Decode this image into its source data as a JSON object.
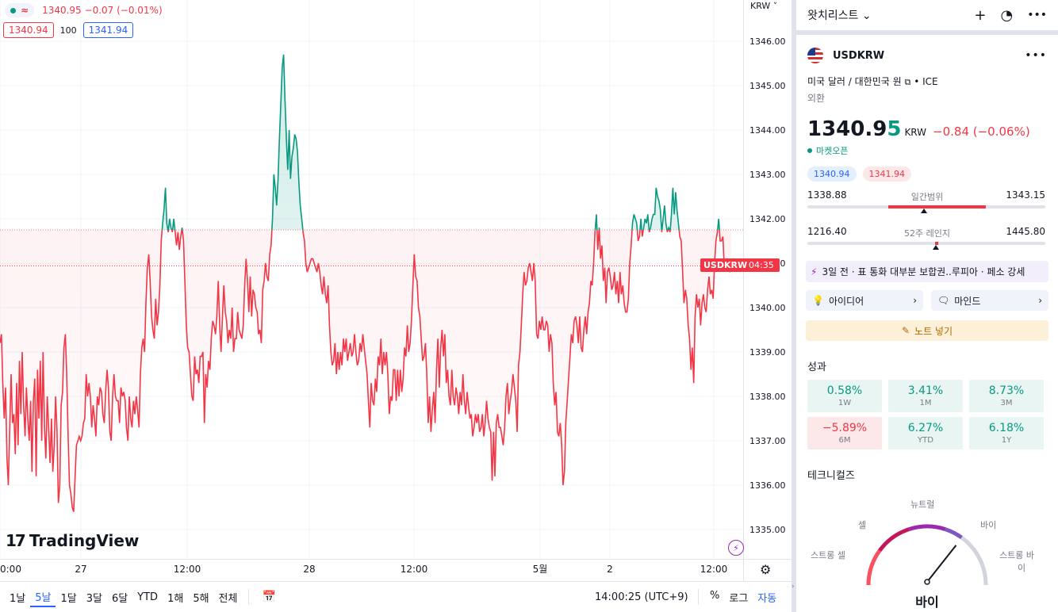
{
  "chart_data": {
    "type": "area",
    "symbol": "USDKRW",
    "y_ticks": [
      "1346.00",
      "1345.00",
      "1344.00",
      "1343.00",
      "1342.00",
      "1341.00",
      "1340.00",
      "1339.00",
      "1338.00",
      "1337.00",
      "1336.00",
      "1335.00"
    ],
    "x_ticks": [
      "0:00",
      "27",
      "12:00",
      "28",
      "12:00",
      "5월",
      "2",
      "12:00"
    ],
    "baseline": 1341.75,
    "last_price": 1340.94,
    "ylim": [
      1334.6,
      1346.3
    ],
    "series": [
      {
        "values": [
          1339.2,
          1339.4,
          1338.3,
          1337.5,
          1338.2,
          1336.6,
          1336.0,
          1337.3,
          1338.5,
          1337.4,
          1337.6,
          1336.7,
          1338.3,
          1336.9,
          1338.8,
          1337.6,
          1339.0,
          1337.8,
          1337.1,
          1338.2,
          1337.5,
          1337.0,
          1337.9,
          1336.3,
          1337.9,
          1338.4,
          1336.2,
          1338.6,
          1337.5,
          1338.8,
          1337.0,
          1339.0,
          1337.3,
          1336.6,
          1338.0,
          1337.3,
          1336.5,
          1337.5,
          1336.3,
          1336.9,
          1338.0,
          1337.2,
          1335.6,
          1336.0,
          1337.8,
          1338.1,
          1339.1,
          1339.4,
          1338.5,
          1337.1,
          1336.0,
          1335.8,
          1335.5,
          1335.4,
          1336.2,
          1336.9,
          1337.0,
          1337.1,
          1337.0,
          1337.1,
          1337.4,
          1337.5,
          1338.5,
          1338.0,
          1338.3,
          1338.0,
          1337.3,
          1337.8,
          1337.5,
          1337.1,
          1338.0,
          1337.8,
          1338.2,
          1338.1,
          1337.6,
          1337.4,
          1338.1,
          1338.6,
          1338.2,
          1337.2,
          1337.0,
          1338.0,
          1338.5,
          1338.0,
          1337.9,
          1337.9,
          1337.4,
          1338.2,
          1338.0,
          1338.1,
          1337.9,
          1337.3,
          1337.0,
          1338.0,
          1337.5,
          1337.3,
          1337.9,
          1337.6,
          1338.0,
          1337.7,
          1337.3,
          1338.5,
          1339.1,
          1339.3,
          1339.0,
          1340.1,
          1340.9,
          1341.2,
          1340.6,
          1339.8,
          1339.5,
          1339.3,
          1340.2,
          1339.6,
          1339.9,
          1340.5,
          1341.5,
          1341.9,
          1342.2,
          1342.7,
          1341.9,
          1341.7,
          1342.0,
          1341.8,
          1341.7,
          1342.0,
          1341.7,
          1341.4,
          1341.7,
          1341.3,
          1341.6,
          1341.8,
          1341.5,
          1340.6,
          1339.6,
          1339.1,
          1339.0,
          1338.5,
          1338.0,
          1337.9,
          1338.9,
          1338.5,
          1338.6,
          1338.3,
          1338.9,
          1338.9,
          1339.0,
          1337.4,
          1338.5,
          1338.2,
          1338.8,
          1338.6,
          1339.3,
          1339.7,
          1339.6,
          1339.4,
          1339.8,
          1340.6,
          1339.6,
          1339.0,
          1339.8,
          1340.5,
          1339.9,
          1339.7,
          1339.2,
          1339.5,
          1339.3,
          1340.0,
          1339.0,
          1339.3,
          1339.3,
          1339.9,
          1339.5,
          1339.4,
          1339.3,
          1339.6,
          1340.5,
          1341.1,
          1340.6,
          1339.9,
          1340.7,
          1339.8,
          1340.4,
          1340.3,
          1340.0,
          1339.9,
          1339.4,
          1339.5,
          1339.2,
          1340.4,
          1340.6,
          1341.0,
          1340.7,
          1340.6,
          1341.2,
          1341.4,
          1342.0,
          1343.0,
          1342.7,
          1342.3,
          1342.9,
          1343.8,
          1344.6,
          1345.4,
          1345.7,
          1344.7,
          1343.8,
          1343.1,
          1344.0,
          1342.9,
          1343.4,
          1343.6,
          1343.9,
          1343.8,
          1343.5,
          1342.8,
          1342.3,
          1342.0,
          1341.7,
          1341.5,
          1341.0,
          1340.8,
          1340.9,
          1341.0,
          1341.1,
          1341.1,
          1341.0,
          1340.9,
          1340.8,
          1341.0,
          1340.8,
          1340.5,
          1340.3,
          1340.7,
          1340.3,
          1340.1,
          1340.5,
          1339.6,
          1339.0,
          1338.7,
          1338.8,
          1339.2,
          1338.5,
          1339.0,
          1338.6,
          1339.0,
          1338.7,
          1339.3,
          1339.0,
          1339.3,
          1338.8,
          1339.0,
          1339.2,
          1338.9,
          1339.0,
          1339.4,
          1339.0,
          1338.7,
          1338.8,
          1339.2,
          1339.0,
          1339.4,
          1339.1,
          1338.8,
          1338.5,
          1337.9,
          1337.3,
          1338.3,
          1337.9,
          1337.8,
          1338.4,
          1338.1,
          1338.9,
          1338.7,
          1339.3,
          1338.5,
          1339.0,
          1338.7,
          1339.0,
          1338.5,
          1337.6,
          1338.0,
          1337.9,
          1338.6,
          1338.6,
          1337.9,
          1338.6,
          1338.0,
          1338.6,
          1338.1,
          1338.4,
          1339.1,
          1338.9,
          1339.6,
          1339.0,
          1339.2,
          1339.7,
          1340.5,
          1341.2,
          1340.7,
          1340.6,
          1340.0,
          1339.8,
          1339.3,
          1338.8,
          1338.9,
          1339.2,
          1338.5,
          1337.4,
          1338.0,
          1337.2,
          1337.7,
          1338.1,
          1337.4,
          1338.6,
          1339.3,
          1338.2,
          1339.1,
          1339.5,
          1338.9,
          1339.4,
          1338.3,
          1338.6,
          1338.0,
          1337.8,
          1338.6,
          1338.0,
          1337.8,
          1338.2,
          1338.0,
          1337.6,
          1338.1,
          1337.8,
          1338.5,
          1337.9,
          1337.6,
          1338.1,
          1337.8,
          1337.5,
          1337.6,
          1337.1,
          1337.3,
          1337.6,
          1337.4,
          1337.6,
          1337.2,
          1337.3,
          1337.6,
          1337.1,
          1337.4,
          1337.9,
          1337.5,
          1337.3,
          1337.2,
          1336.1,
          1337.2,
          1336.2,
          1337.4,
          1337.6,
          1337.3,
          1337.3,
          1337.1,
          1336.9,
          1337.3,
          1338.0,
          1338.3,
          1337.6,
          1337.9,
          1338.1,
          1338.5,
          1338.2,
          1337.9,
          1337.2,
          1338.7,
          1339.0,
          1339.6,
          1340.3,
          1340.8,
          1340.5,
          1340.6,
          1340.9,
          1341.0,
          1340.8,
          1340.6,
          1341.0,
          1340.6,
          1339.4,
          1339.3,
          1339.7,
          1339.5,
          1339.8,
          1339.5,
          1339.5,
          1339.7,
          1339.6,
          1339.0,
          1339.4,
          1339.2,
          1338.3,
          1337.8,
          1338.1,
          1337.2,
          1337.1,
          1337.4,
          1336.9,
          1336.0,
          1336.3,
          1337.4,
          1337.9,
          1338.4,
          1338.9,
          1339.4,
          1339.2,
          1339.7,
          1339.8,
          1339.6,
          1339.2,
          1339.8,
          1339.1,
          1339.0,
          1339.5,
          1339.8,
          1339.4,
          1339.9,
          1340.1,
          1340.6,
          1340.5,
          1341.0,
          1341.7,
          1342.1,
          1341.3,
          1341.8,
          1341.1,
          1341.4,
          1340.6,
          1340.9,
          1340.1,
          1340.8,
          1340.9,
          1340.7,
          1340.4,
          1340.5,
          1340.8,
          1340.3,
          1340.6,
          1340.1,
          1340.8,
          1340.3,
          1340.5,
          1340.1,
          1339.9,
          1339.9,
          1340.2,
          1341.0,
          1341.4,
          1341.9,
          1342.1,
          1342.0,
          1341.9,
          1341.5,
          1341.6,
          1342.0,
          1341.6,
          1341.8,
          1342.0,
          1341.9,
          1342.1,
          1341.7,
          1341.8,
          1342.0,
          1342.1,
          1342.1,
          1342.7,
          1342.5,
          1342.4,
          1342.2,
          1341.7,
          1342.0,
          1342.3,
          1341.9,
          1341.7,
          1341.8,
          1341.7,
          1342.1,
          1342.7,
          1342.1,
          1342.6,
          1342.2,
          1341.9,
          1341.6,
          1341.5,
          1340.8,
          1340.1,
          1340.4,
          1340.2,
          1339.6,
          1339.3,
          1338.6,
          1339.1,
          1338.3,
          1339.8,
          1340.3,
          1340.0,
          1340.2,
          1339.6,
          1340.1,
          1340.3,
          1340.0,
          1339.9,
          1340.4,
          1340.7,
          1340.3,
          1340.4,
          1340.2,
          1341.0,
          1341.5,
          1341.7,
          1342.0,
          1341.5,
          1341.5,
          1341.6,
          1340.9,
          1341.1,
          1341.0,
          1341.0,
          1340.8,
          1340.9
        ]
      }
    ]
  },
  "legend": {
    "price": "1340.95",
    "change": "−0.07 (−0.01%)",
    "bid": "1340.94",
    "spread": "100",
    "ask": "1341.94"
  },
  "axis": {
    "currency": "KRW",
    "price_tag_symbol": "USDKRW",
    "price_tag_time": "04:35"
  },
  "brand": {
    "name": "TradingView",
    "mark": "17"
  },
  "bottom_bar": {
    "ranges": [
      "1날",
      "5날",
      "1달",
      "3달",
      "6달",
      "YTD",
      "1해",
      "5해",
      "전체"
    ],
    "active_range": "5날",
    "clock": "14:00:25 (UTC+9)",
    "toggles": [
      "%",
      "로그",
      "자동"
    ],
    "active_toggle": "자동"
  },
  "watchlist": {
    "title": "왓치리스트",
    "chevron": "⌄"
  },
  "symbol_info": {
    "symbol": "USDKRW",
    "description": "미국 달러 / 대한민국 원",
    "exchange": "ICE",
    "type": "외환",
    "price_main": "1340.9",
    "price_last": "5",
    "currency": "KRW",
    "change": "−0.84 (−0.06%)",
    "market_status": "마켓오픈",
    "bid": "1340.94",
    "ask": "1341.94",
    "day_range": {
      "low": "1338.88",
      "label": "일간범위",
      "high": "1343.15",
      "fill_start": 0.34,
      "fill_end": 0.75,
      "marker": 0.49
    },
    "year_range": {
      "low": "1216.40",
      "label": "52주 레인지",
      "high": "1445.80",
      "fill_start": 0.535,
      "fill_end": 0.55,
      "marker": 0.54
    },
    "news": "3일 전 · 표 통화 대부분 보합권..루피아 · 페소 강세",
    "ideas_label": "아이디어",
    "minds_label": "마인드",
    "note_label": "노트 넣기"
  },
  "performance": {
    "title": "성과",
    "cells": [
      {
        "value": "0.58%",
        "period": "1W",
        "sign": "pos"
      },
      {
        "value": "3.41%",
        "period": "1M",
        "sign": "pos"
      },
      {
        "value": "8.73%",
        "period": "3M",
        "sign": "pos"
      },
      {
        "value": "−5.89%",
        "period": "6M",
        "sign": "neg"
      },
      {
        "value": "6.27%",
        "period": "YTD",
        "sign": "pos"
      },
      {
        "value": "6.18%",
        "period": "1Y",
        "sign": "pos"
      }
    ]
  },
  "technicals": {
    "title": "테크니컬즈",
    "labels": {
      "neutral": "뉴트럴",
      "sell": "셀",
      "buy": "바이",
      "strong_sell": "스트롱 셀",
      "strong_buy_1": "스트롱 바",
      "strong_buy_2": "이"
    },
    "verdict": "바이",
    "needle_fraction": 0.7
  },
  "colors": {
    "up": "#089981",
    "down": "#f23645",
    "accent": "#2962ff",
    "purple": "#9c27b0"
  }
}
